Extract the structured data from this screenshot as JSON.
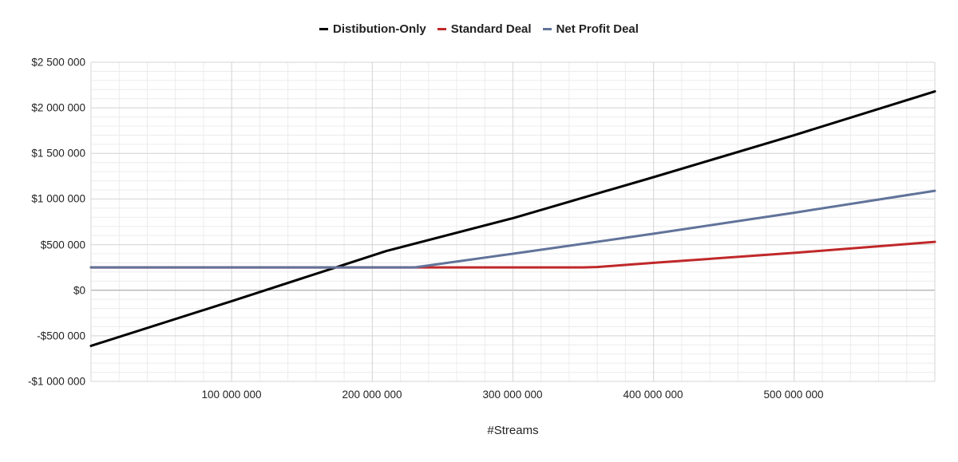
{
  "chart_data": {
    "type": "line",
    "title": "",
    "xlabel": "#Streams",
    "ylabel": "",
    "xlim": [
      0,
      600000000
    ],
    "ylim": [
      -1000000,
      2500000
    ],
    "grid": true,
    "legend_position": "top",
    "x_ticks": [
      "100 000 000",
      "200 000 000",
      "300 000 000",
      "400 000 000",
      "500 000 000"
    ],
    "x_tick_values": [
      100000000,
      200000000,
      300000000,
      400000000,
      500000000
    ],
    "y_ticks": [
      "$2 500 000",
      "$2 000 000",
      "$1 500 000",
      "$1 000 000",
      "$500 000",
      "$0",
      "-$500 000",
      "-$1 000 000"
    ],
    "y_tick_values": [
      2500000,
      2000000,
      1500000,
      1000000,
      500000,
      0,
      -500000,
      -1000000
    ],
    "series": [
      {
        "name": "Distibution-Only",
        "color": "#000000",
        "x": [
          0,
          100000000,
          170000000,
          210000000,
          300000000,
          400000000,
          500000000,
          600000000
        ],
        "y": [
          -610000,
          -120000,
          230000,
          430000,
          790000,
          1240000,
          1700000,
          2180000
        ]
      },
      {
        "name": "Standard Deal",
        "color": "#c0282a",
        "x": [
          0,
          100000000,
          200000000,
          300000000,
          350000000,
          360000000,
          400000000,
          500000000,
          600000000
        ],
        "y": [
          250000,
          250000,
          250000,
          250000,
          250000,
          255000,
          300000,
          410000,
          530000
        ]
      },
      {
        "name": "Net Profit Deal",
        "color": "#61739a",
        "x": [
          0,
          100000000,
          200000000,
          230000000,
          300000000,
          400000000,
          500000000,
          600000000
        ],
        "y": [
          250000,
          250000,
          250000,
          250000,
          400000,
          620000,
          850000,
          1090000
        ]
      }
    ]
  },
  "legend": {
    "items": [
      {
        "label": "Distibution-Only",
        "color": "#000000"
      },
      {
        "label": "Standard Deal",
        "color": "#c0282a"
      },
      {
        "label": "Net Profit Deal",
        "color": "#61739a"
      }
    ]
  }
}
